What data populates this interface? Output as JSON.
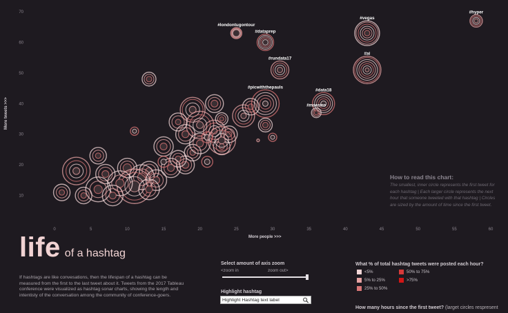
{
  "chart_data": {
    "type": "scatter",
    "xlabel": "More people  >>>",
    "ylabel": "More tweets  >>>",
    "xlim": [
      -2,
      62
    ],
    "ylim": [
      0,
      72
    ],
    "x_ticks": [
      0,
      5,
      10,
      15,
      20,
      25,
      30,
      35,
      40,
      45,
      50,
      55,
      60
    ],
    "y_ticks": [
      10,
      20,
      30,
      40,
      50,
      60,
      70
    ],
    "grid": false,
    "marker_encoding": "concentric rings, one per hour since the first tweet; ring color = % of total hashtag tweets posted that hour",
    "labeled_points": [
      {
        "label": "#londontugontour",
        "x": 25,
        "y": 63,
        "rings": [
          5,
          6,
          7,
          8
        ]
      },
      {
        "label": "#dataprep",
        "x": 29,
        "y": 60,
        "rings": [
          4,
          6,
          8,
          10,
          12
        ]
      },
      {
        "label": "#vegas",
        "x": 43,
        "y": 63,
        "rings": [
          4,
          7,
          10,
          13,
          16,
          18
        ]
      },
      {
        "label": "#hyper",
        "x": 58,
        "y": 67,
        "rings": [
          3,
          5,
          7,
          9
        ]
      },
      {
        "label": "#ai",
        "x": 43,
        "y": 51,
        "rings": [
          3,
          6,
          9,
          12,
          15,
          18,
          20
        ]
      },
      {
        "label": "#rundata17",
        "x": 31,
        "y": 51,
        "rings": [
          4,
          7,
          10,
          13
        ]
      },
      {
        "label": "#picwiththepauls",
        "x": 29,
        "y": 40,
        "rings": [
          4,
          8,
          12,
          16,
          20
        ]
      },
      {
        "label": "#data18",
        "x": 37,
        "y": 40,
        "rings": [
          4,
          7,
          10,
          13,
          16
        ]
      },
      {
        "label": "#maestro",
        "x": 36,
        "y": 37,
        "rings": [
          3,
          5,
          7
        ]
      }
    ],
    "points": [
      {
        "x": 13,
        "y": 48,
        "rings": [
          4,
          7,
          10
        ]
      },
      {
        "x": 11,
        "y": 31,
        "rings": [
          3,
          6
        ]
      },
      {
        "x": 15,
        "y": 26,
        "rings": [
          5,
          10,
          14
        ]
      },
      {
        "x": 6,
        "y": 23,
        "rings": [
          4,
          8,
          12
        ]
      },
      {
        "x": 22,
        "y": 40,
        "rings": [
          5,
          9,
          13
        ]
      },
      {
        "x": 19,
        "y": 38,
        "rings": [
          5,
          10,
          15,
          18
        ]
      },
      {
        "x": 20,
        "y": 33,
        "rings": [
          5,
          10,
          15,
          20
        ]
      },
      {
        "x": 22,
        "y": 31,
        "rings": [
          4,
          8,
          12,
          16
        ]
      },
      {
        "x": 18,
        "y": 30,
        "rings": [
          5,
          10,
          14
        ]
      },
      {
        "x": 17,
        "y": 34,
        "rings": [
          4,
          9,
          13
        ]
      },
      {
        "x": 24,
        "y": 30,
        "rings": [
          4,
          8,
          12
        ]
      },
      {
        "x": 23,
        "y": 26,
        "rings": [
          4,
          8,
          12
        ]
      },
      {
        "x": 26,
        "y": 36,
        "rings": [
          4,
          8,
          12,
          16
        ]
      },
      {
        "x": 27,
        "y": 39,
        "rings": [
          4,
          8,
          12
        ]
      },
      {
        "x": 29,
        "y": 33,
        "rings": [
          4,
          7,
          10
        ]
      },
      {
        "x": 30,
        "y": 29,
        "rings": [
          3,
          6
        ]
      },
      {
        "x": 28,
        "y": 28,
        "rings": [
          2
        ]
      },
      {
        "x": 23,
        "y": 35,
        "rings": [
          3,
          6,
          9
        ]
      },
      {
        "x": 21,
        "y": 21,
        "rings": [
          4,
          8
        ]
      },
      {
        "x": 18,
        "y": 20,
        "rings": [
          5,
          9,
          13
        ]
      },
      {
        "x": 17,
        "y": 22,
        "rings": [
          4,
          8,
          12
        ]
      },
      {
        "x": 16,
        "y": 19,
        "rings": [
          5,
          10,
          14
        ]
      },
      {
        "x": 13,
        "y": 18,
        "rings": [
          5,
          10,
          14
        ]
      },
      {
        "x": 10,
        "y": 19,
        "rings": [
          6,
          10,
          14
        ]
      },
      {
        "x": 12,
        "y": 16,
        "rings": [
          6,
          12,
          18
        ]
      },
      {
        "x": 11,
        "y": 13,
        "rings": [
          8,
          14,
          20,
          25
        ]
      },
      {
        "x": 9,
        "y": 14,
        "rings": [
          6,
          12,
          18
        ]
      },
      {
        "x": 7,
        "y": 17,
        "rings": [
          5,
          10,
          14
        ]
      },
      {
        "x": 6,
        "y": 12,
        "rings": [
          6,
          12,
          18
        ]
      },
      {
        "x": 8,
        "y": 10,
        "rings": [
          5,
          10,
          15
        ]
      },
      {
        "x": 4,
        "y": 10,
        "rings": [
          4,
          8,
          12
        ]
      },
      {
        "x": 1,
        "y": 11,
        "rings": [
          4,
          8,
          12
        ]
      },
      {
        "x": 3,
        "y": 18,
        "rings": [
          5,
          10,
          15,
          20
        ]
      },
      {
        "x": 14,
        "y": 15,
        "rings": [
          5,
          10,
          15
        ]
      },
      {
        "x": 15,
        "y": 21,
        "rings": [
          4,
          8
        ]
      },
      {
        "x": 19,
        "y": 24,
        "rings": [
          4,
          8,
          12
        ]
      },
      {
        "x": 20,
        "y": 27,
        "rings": [
          5,
          10,
          15
        ]
      },
      {
        "x": 21,
        "y": 29,
        "rings": [
          4,
          8
        ]
      },
      {
        "x": 23,
        "y": 28,
        "rings": [
          5,
          10,
          15,
          20
        ]
      },
      {
        "x": 13,
        "y": 12,
        "rings": [
          5,
          10,
          15
        ]
      }
    ]
  },
  "axis": {
    "x_title": "More people  >>>",
    "y_title": "More tweets  >>>"
  },
  "howto": {
    "title": "How to read this chart:",
    "body": "The smallest, inner circle represents the first tweet for each hashtag  |  Each larger circle represents the next hour that someone tweeted with that hashtag  |  Circles are sized by the amount of time since the first tweet."
  },
  "header": {
    "title_main": "life",
    "title_sub": "of a hashtag"
  },
  "description": "If hashtags are like convesations, then the lifespan of a hashtag can be measured from the first to the last tweet about it. Tweets from the 2017 Tableau conference were visualized as hashtag sonar charts, showing the length and intentisty of the conversation among the community of conference-goers.",
  "zoom": {
    "title": "Select amount of axis zoom",
    "in_label": "<zoom in",
    "out_label": "zoom out>",
    "value": 1.0
  },
  "highlight": {
    "title": "Highlight hashtag",
    "value": "Highlight Hashtag text label",
    "placeholder": ""
  },
  "percent_legend": {
    "title": "What % of total hashtag tweets were posted each hour?",
    "items": [
      {
        "label": "<5%",
        "color": "#f2d6d6"
      },
      {
        "label": "5% to 25%",
        "color": "#e7a3a3"
      },
      {
        "label": "25% to 50%",
        "color": "#d97676"
      },
      {
        "label": "50% to 75%",
        "color": "#d63a3a"
      },
      {
        "label": ">75%",
        "color": "#d11616"
      }
    ]
  },
  "hours_legend": {
    "title": "How many hours since the first tweet?",
    "subtitle": "(larget circles respresent"
  },
  "colors": {
    "background": "#1e1a20",
    "title": "#f1d3d3",
    "ring_light": "#f2d6d6",
    "ring_mid": "#e7a3a3",
    "ring_dark": "#d97676",
    "ring_outline": "#5a4548"
  }
}
